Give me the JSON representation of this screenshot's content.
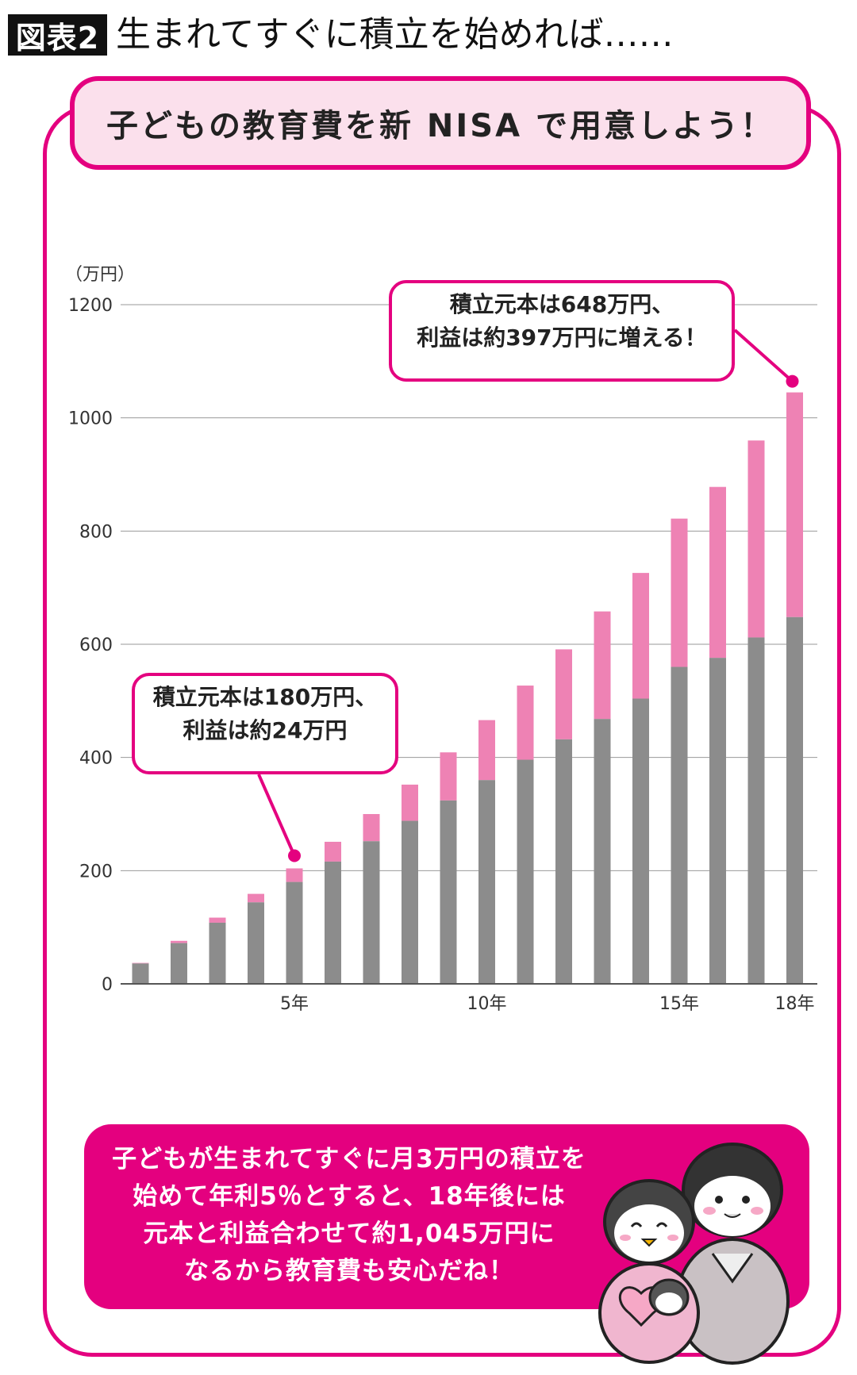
{
  "figure": {
    "label": "図表2",
    "title": "生まれてすぐに積立を始めれば……"
  },
  "header": {
    "text": "子どもの教育費を新 NISA で用意しよう！"
  },
  "callouts": {
    "year18": [
      "積立元本は648万円、",
      "利益は約397万円に増える！"
    ],
    "year5": [
      "積立元本は180万円、",
      "利益は約24万円"
    ]
  },
  "bottom": {
    "lines": [
      "子どもが生まれてすぐに月3万円の積立を",
      "始めて年利5％とすると、18年後には",
      "元本と利益合わせて約1,045万円に",
      "なるから教育費も安心だね！"
    ]
  },
  "illustration": {
    "icon": "penguin-family-icon"
  },
  "colors": {
    "accent": "#e4007f",
    "principal": "#8c8c8c",
    "profit": "#ee82b4",
    "header_bg": "#fbe0ec"
  },
  "chart_data": {
    "type": "bar",
    "stacked": true,
    "unit": "（万円）",
    "ylim": [
      0,
      1200
    ],
    "yticks": [
      0,
      200,
      400,
      600,
      800,
      1000,
      1200
    ],
    "grid": true,
    "categories": [
      1,
      2,
      3,
      4,
      5,
      6,
      7,
      8,
      9,
      10,
      11,
      12,
      13,
      14,
      15,
      16,
      17,
      18
    ],
    "xtick_labels": [
      {
        "category": 5,
        "label": "5年"
      },
      {
        "category": 10,
        "label": "10年"
      },
      {
        "category": 15,
        "label": "15年"
      },
      {
        "category": 18,
        "label": "18年"
      }
    ],
    "series": [
      {
        "values": [
          36,
          72,
          108,
          144,
          180,
          216,
          252,
          288,
          324,
          360,
          396,
          432,
          468,
          504,
          560,
          576,
          612,
          648
        ]
      },
      {
        "values": [
          1,
          4,
          9,
          15,
          24,
          35,
          48,
          64,
          85,
          106,
          131,
          159,
          190,
          222,
          262,
          302,
          348,
          397
        ]
      }
    ]
  }
}
